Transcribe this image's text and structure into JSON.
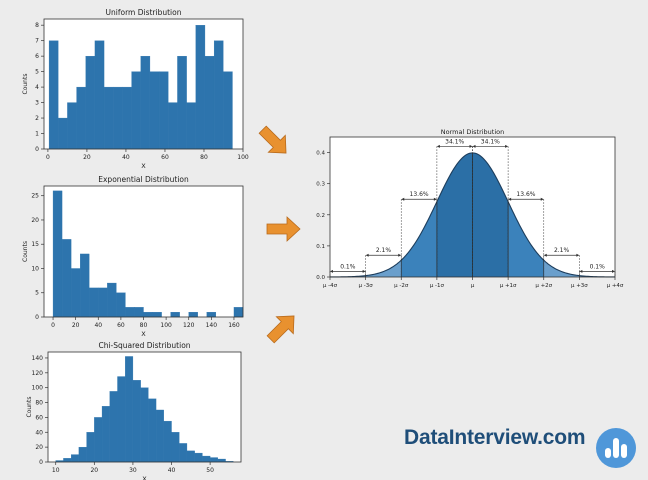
{
  "colors": {
    "bar": "#2d74ad",
    "bar_edge": "#2d74ad",
    "arrow": "#e8912f",
    "normal_dark": "#2b6fa6",
    "normal_mid": "#3b82bb",
    "normal_light": "#6a9fcc",
    "brand": "#1f4e79",
    "logo": "#4f97d9"
  },
  "brand": {
    "text": "DataInterview.com",
    "icon": "bar-chart-logo-icon"
  },
  "arrows": [
    {
      "icon": "arrow-down-right-icon"
    },
    {
      "icon": "arrow-right-icon"
    },
    {
      "icon": "arrow-up-right-icon"
    }
  ],
  "chart_data": [
    {
      "type": "bar",
      "title": "Uniform Distribution",
      "xlabel": "X",
      "ylabel": "Counts",
      "xlim": [
        -2,
        100
      ],
      "ylim": [
        0,
        8.4
      ],
      "xticks": [
        0,
        20,
        40,
        60,
        80,
        100
      ],
      "yticks": [
        0,
        1,
        2,
        3,
        4,
        5,
        6,
        7,
        8
      ],
      "bin_edges": [
        0.6,
        5.3,
        10.0,
        14.7,
        19.4,
        24.1,
        28.8,
        33.5,
        38.2,
        42.9,
        47.6,
        52.3,
        57.0,
        61.7,
        66.4,
        71.1,
        75.8,
        80.5,
        85.2,
        89.9,
        94.6
      ],
      "values": [
        7,
        2,
        3,
        4,
        6,
        7,
        4,
        4,
        4,
        5,
        6,
        5,
        5,
        3,
        6,
        3,
        8,
        6,
        7,
        5
      ]
    },
    {
      "type": "bar",
      "title": "Exponential Distribution",
      "xlabel": "X",
      "ylabel": "Counts",
      "xlim": [
        -8,
        168
      ],
      "ylim": [
        0,
        27
      ],
      "xticks": [
        0,
        20,
        40,
        60,
        80,
        100,
        120,
        140,
        160
      ],
      "yticks": [
        0,
        5,
        10,
        15,
        20,
        25
      ],
      "bin_edges": [
        0,
        8,
        16,
        24,
        32,
        40,
        48,
        56,
        64,
        72,
        80,
        88,
        96,
        104,
        112,
        120,
        128,
        136,
        144,
        152,
        160,
        168
      ],
      "values": [
        26,
        16,
        10,
        13,
        6,
        6,
        7,
        5,
        2,
        2,
        1,
        1,
        0,
        1,
        0,
        1,
        0,
        1,
        0,
        0,
        2
      ]
    },
    {
      "type": "bar",
      "title": "Chi-Squared Distribution",
      "xlabel": "X",
      "ylabel": "Counts",
      "xlim": [
        8,
        58
      ],
      "ylim": [
        0,
        148
      ],
      "xticks": [
        10,
        20,
        30,
        40,
        50
      ],
      "yticks": [
        0,
        20,
        40,
        60,
        80,
        100,
        120,
        140
      ],
      "bin_edges": [
        10,
        12,
        14,
        16,
        18,
        20,
        22,
        24,
        26,
        28,
        30,
        32,
        34,
        36,
        38,
        40,
        42,
        44,
        46,
        48,
        50,
        52,
        54,
        56
      ],
      "values": [
        2,
        5,
        10,
        20,
        40,
        60,
        75,
        95,
        115,
        142,
        110,
        100,
        85,
        70,
        55,
        40,
        25,
        15,
        12,
        8,
        6,
        4,
        1
      ]
    },
    {
      "type": "area",
      "title": "Normal Distribution",
      "xlim": [
        -4,
        4
      ],
      "ylim": [
        0,
        0.45
      ],
      "yticks": [
        0.0,
        0.1,
        0.2,
        0.3,
        0.4
      ],
      "ytick_labels": [
        "0.0",
        "0.1",
        "0.2",
        "0.3",
        "0.4"
      ],
      "xtick_positions": [
        -4,
        -3,
        -2,
        -1,
        0,
        1,
        2,
        3,
        4
      ],
      "xtick_labels": [
        "μ -4σ",
        "μ -3σ",
        "μ -2σ",
        "μ -1σ",
        "μ",
        "μ +1σ",
        "μ +2σ",
        "μ +3σ",
        "μ +4σ"
      ],
      "annotations": [
        {
          "text": "0.1%",
          "from": -4,
          "to": -3,
          "y": 0.018
        },
        {
          "text": "2.1%",
          "from": -3,
          "to": -2,
          "y": 0.07
        },
        {
          "text": "13.6%",
          "from": -2,
          "to": -1,
          "y": 0.25
        },
        {
          "text": "34.1%",
          "from": -1,
          "to": 0,
          "y": 0.42
        },
        {
          "text": "34.1%",
          "from": 0,
          "to": 1,
          "y": 0.42
        },
        {
          "text": "13.6%",
          "from": 1,
          "to": 2,
          "y": 0.25
        },
        {
          "text": "2.1%",
          "from": 2,
          "to": 3,
          "y": 0.07
        },
        {
          "text": "0.1%",
          "from": 3,
          "to": 4,
          "y": 0.018
        }
      ]
    }
  ]
}
